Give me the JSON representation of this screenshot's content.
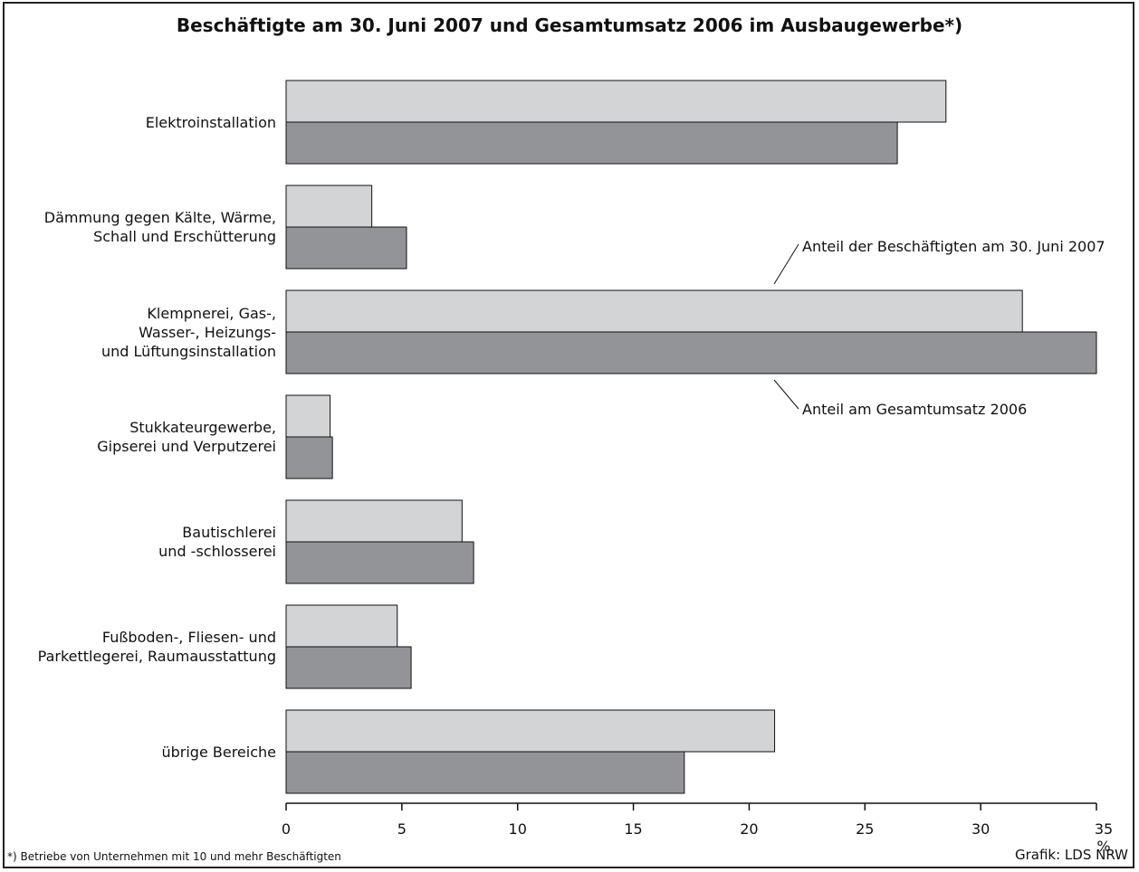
{
  "chart_data": {
    "type": "bar",
    "orientation": "horizontal",
    "title": "Beschäftigte am 30. Juni 2007 und Gesamtumsatz 2006 im Ausbaugewerbe*)",
    "categories": [
      [
        "Elektroinstallation"
      ],
      [
        "Dämmung gegen Kälte, Wärme,",
        "Schall und Erschütterung"
      ],
      [
        "Klempnerei, Gas-,",
        "Wasser-, Heizungs-",
        "und Lüftungsinstallation"
      ],
      [
        "Stukkateurgewerbe,",
        "Gipserei und Verputzerei"
      ],
      [
        "Bautischlerei",
        "und -schlosserei"
      ],
      [
        "Fußboden-, Fliesen- und",
        "Parkettlegerei, Raumausstattung"
      ],
      [
        "übrige Bereiche"
      ]
    ],
    "series": [
      {
        "name": "Anteil der Beschäftigten am 30. Juni 2007",
        "color": "#d3d4d6",
        "values": [
          28.5,
          3.7,
          31.8,
          1.9,
          7.6,
          4.8,
          21.1
        ]
      },
      {
        "name": "Anteil am Gesamtumsatz 2006",
        "color": "#939497",
        "values": [
          26.4,
          5.2,
          35.0,
          2.0,
          8.1,
          5.4,
          17.2
        ]
      }
    ],
    "xlim": [
      0,
      35
    ],
    "xticks": [
      "0",
      "5",
      "10",
      "15",
      "20",
      "25",
      "30",
      "35 %"
    ],
    "footnote": "*) Betriebe von Unternehmen mit 10 und mehr Beschäftigten",
    "source": "Grafik: LDS NRW"
  }
}
